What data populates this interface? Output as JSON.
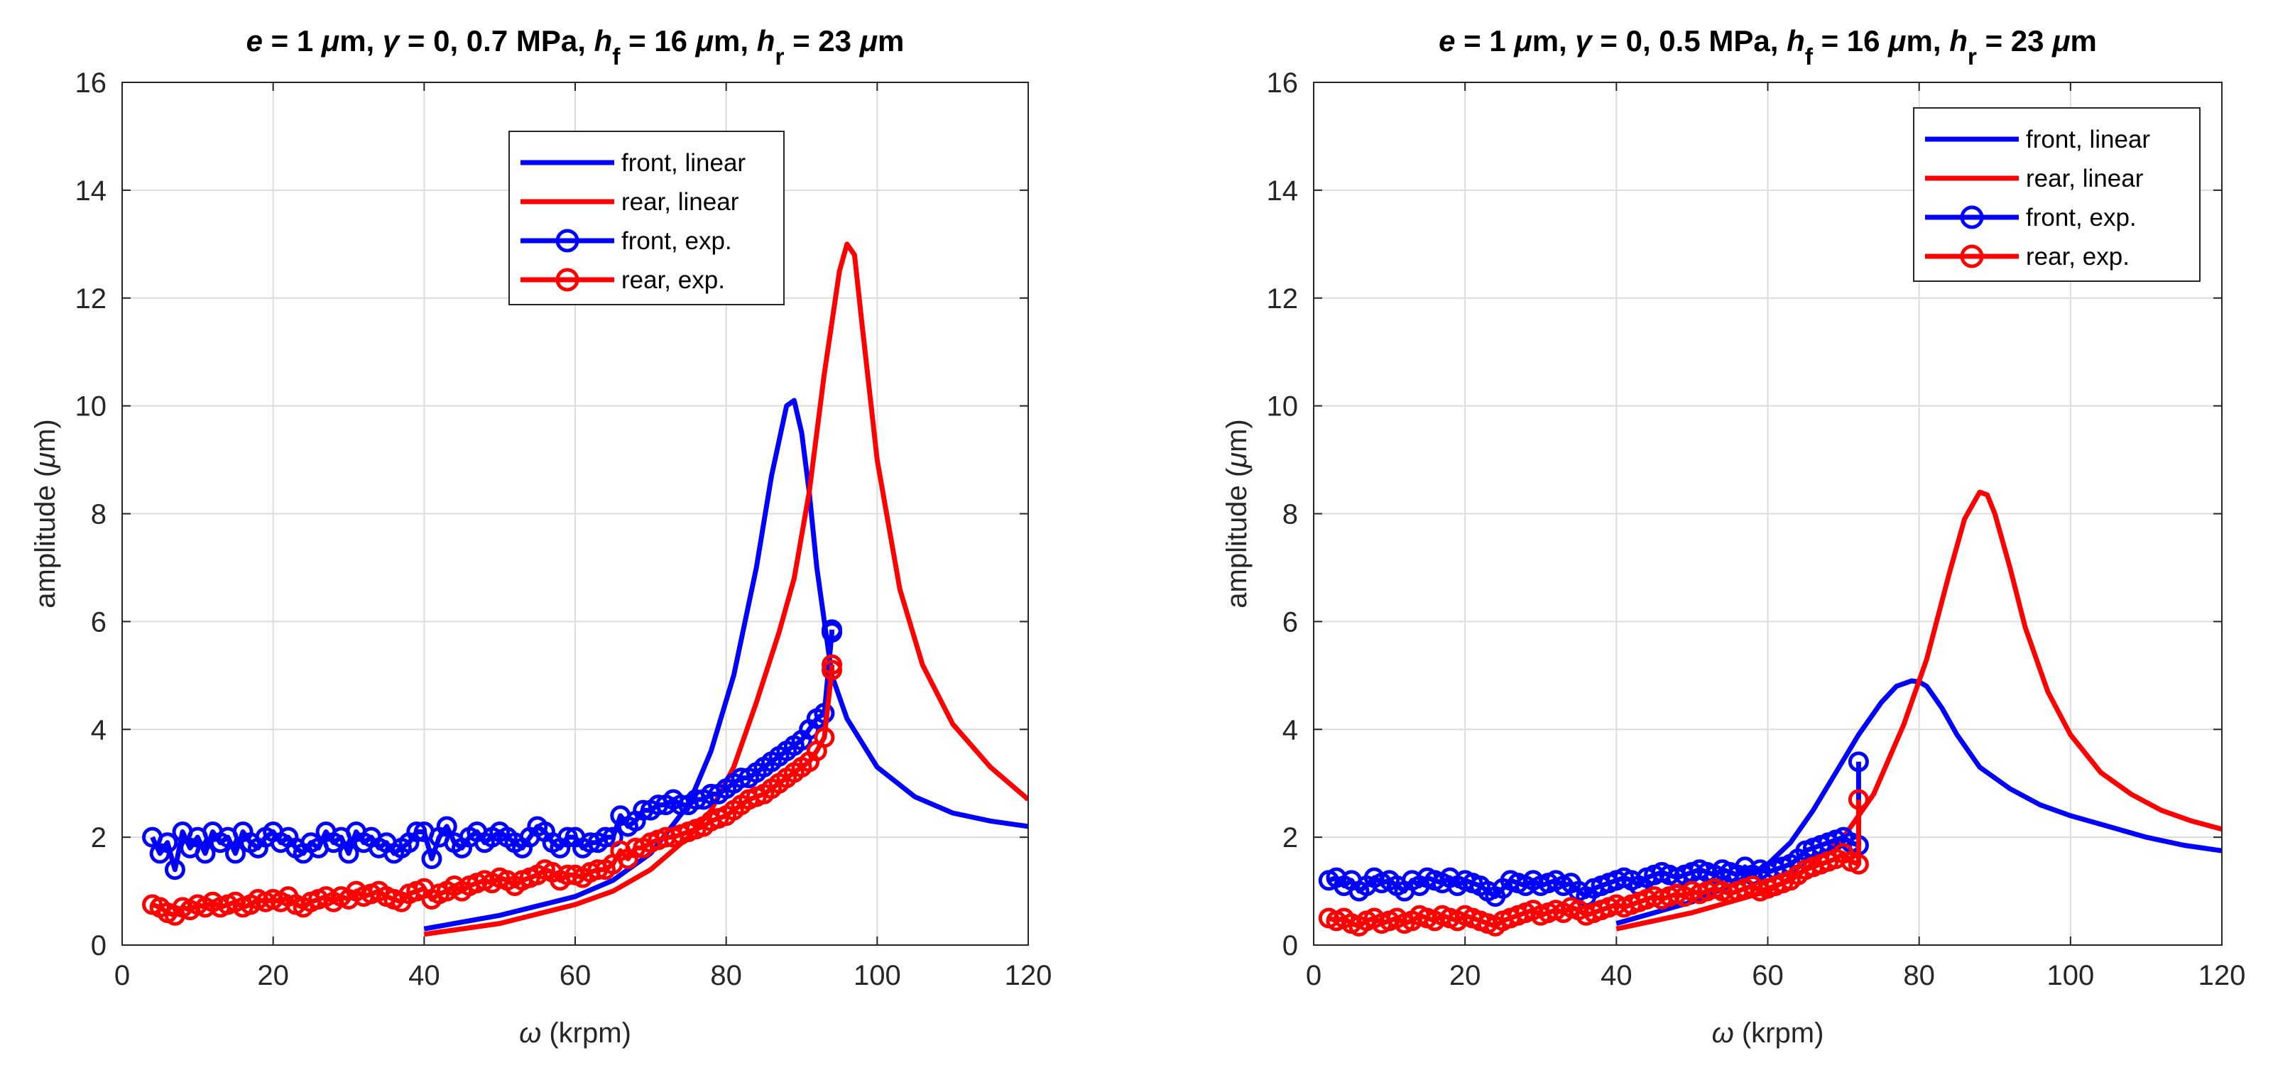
{
  "chart_data": [
    {
      "type": "line",
      "title_parts": [
        {
          "text": "e",
          "italic": true
        },
        {
          "text": " = 1 "
        },
        {
          "text": "μ",
          "italic": true
        },
        {
          "text": "m, "
        },
        {
          "text": "γ",
          "italic": true
        },
        {
          "text": " = 0, 0.7 MPa,  "
        },
        {
          "text": "h",
          "italic": true
        },
        {
          "text": "f",
          "sub": true
        },
        {
          "text": " = 16 "
        },
        {
          "text": "μ",
          "italic": true
        },
        {
          "text": "m,  "
        },
        {
          "text": "h",
          "italic": true
        },
        {
          "text": "r",
          "sub": true
        },
        {
          "text": " = 23 "
        },
        {
          "text": "μ",
          "italic": true
        },
        {
          "text": "m"
        }
      ],
      "xlabel_parts": [
        {
          "text": "ω",
          "italic": true
        },
        {
          "text": " (krpm)"
        }
      ],
      "ylabel_parts": [
        {
          "text": "amplitude ("
        },
        {
          "text": "μ",
          "italic": true
        },
        {
          "text": "m)"
        }
      ],
      "xlim": [
        0,
        120
      ],
      "ylim": [
        0,
        16
      ],
      "xticks": [
        0,
        20,
        40,
        60,
        80,
        100,
        120
      ],
      "yticks": [
        0,
        2,
        4,
        6,
        8,
        10,
        12,
        14,
        16
      ],
      "grid": true,
      "legend_position": "top-center",
      "legend": [
        "front, linear",
        "rear, linear",
        "front, exp.",
        "rear, exp."
      ],
      "series": [
        {
          "name": "front, linear",
          "color": "#0000ff",
          "marker": "none",
          "x": [
            40,
            50,
            60,
            65,
            70,
            75,
            78,
            81,
            84,
            86,
            88,
            89,
            90,
            91,
            92,
            94,
            96,
            100,
            105,
            110,
            115,
            120
          ],
          "y": [
            0.3,
            0.55,
            0.9,
            1.2,
            1.7,
            2.6,
            3.6,
            5.0,
            7.0,
            8.7,
            10.0,
            10.1,
            9.5,
            8.4,
            7.0,
            5.0,
            4.2,
            3.3,
            2.75,
            2.45,
            2.3,
            2.2
          ]
        },
        {
          "name": "rear, linear",
          "color": "#ff0000",
          "marker": "none",
          "x": [
            40,
            50,
            60,
            65,
            70,
            75,
            78,
            81,
            84,
            87,
            89,
            91,
            93,
            95,
            96,
            97,
            98,
            100,
            103,
            106,
            110,
            115,
            120
          ],
          "y": [
            0.2,
            0.4,
            0.75,
            1.0,
            1.4,
            2.0,
            2.5,
            3.3,
            4.5,
            5.8,
            6.8,
            8.4,
            10.6,
            12.5,
            13.0,
            12.8,
            11.5,
            9.0,
            6.6,
            5.2,
            4.1,
            3.3,
            2.7
          ]
        },
        {
          "name": "front, exp.",
          "color": "#0000ff",
          "marker": "circle",
          "x": [
            4,
            5,
            6,
            7,
            8,
            9,
            10,
            11,
            12,
            13,
            14,
            15,
            16,
            17,
            18,
            19,
            20,
            21,
            22,
            23,
            24,
            25,
            26,
            27,
            28,
            29,
            30,
            31,
            32,
            33,
            34,
            35,
            36,
            37,
            38,
            39,
            40,
            41,
            42,
            43,
            44,
            45,
            46,
            47,
            48,
            49,
            50,
            51,
            52,
            53,
            54,
            55,
            56,
            57,
            58,
            59,
            60,
            61,
            62,
            63,
            64,
            65,
            66,
            67,
            68,
            69,
            70,
            71,
            72,
            73,
            74,
            75,
            76,
            77,
            78,
            79,
            80,
            81,
            82,
            83,
            84,
            85,
            86,
            87,
            88,
            89,
            90,
            91,
            92,
            93,
            94,
            94
          ],
          "y": [
            2.0,
            1.7,
            1.9,
            1.4,
            2.1,
            1.8,
            2.0,
            1.7,
            2.1,
            1.9,
            2.0,
            1.7,
            2.1,
            1.9,
            1.8,
            2.0,
            2.1,
            1.9,
            2.0,
            1.8,
            1.7,
            1.9,
            1.8,
            2.1,
            1.9,
            2.0,
            1.7,
            2.1,
            1.9,
            2.0,
            1.8,
            1.9,
            1.7,
            1.8,
            1.9,
            2.1,
            2.1,
            1.6,
            2.0,
            2.2,
            1.9,
            1.8,
            2.0,
            2.1,
            1.9,
            2.0,
            2.1,
            2.0,
            1.9,
            1.8,
            2.0,
            2.2,
            2.1,
            1.9,
            1.8,
            2.0,
            2.0,
            1.8,
            1.9,
            1.9,
            2.0,
            2.0,
            2.4,
            2.2,
            2.3,
            2.5,
            2.5,
            2.6,
            2.6,
            2.7,
            2.6,
            2.6,
            2.7,
            2.7,
            2.8,
            2.8,
            2.9,
            3.0,
            3.1,
            3.1,
            3.2,
            3.3,
            3.4,
            3.5,
            3.6,
            3.7,
            3.8,
            4.0,
            4.2,
            4.3,
            5.8,
            5.85
          ]
        },
        {
          "name": "rear, exp.",
          "color": "#ff0000",
          "marker": "circle",
          "x": [
            4,
            5,
            6,
            7,
            8,
            9,
            10,
            11,
            12,
            13,
            14,
            15,
            16,
            17,
            18,
            19,
            20,
            21,
            22,
            23,
            24,
            25,
            26,
            27,
            28,
            29,
            30,
            31,
            32,
            33,
            34,
            35,
            36,
            37,
            38,
            39,
            40,
            41,
            42,
            43,
            44,
            45,
            46,
            47,
            48,
            49,
            50,
            51,
            52,
            53,
            54,
            55,
            56,
            57,
            58,
            59,
            60,
            61,
            62,
            63,
            64,
            65,
            66,
            67,
            68,
            69,
            70,
            71,
            72,
            73,
            74,
            75,
            76,
            77,
            78,
            79,
            80,
            81,
            82,
            83,
            84,
            85,
            86,
            87,
            88,
            89,
            90,
            91,
            92,
            93,
            94,
            94
          ],
          "y": [
            0.75,
            0.7,
            0.6,
            0.55,
            0.7,
            0.65,
            0.75,
            0.7,
            0.8,
            0.7,
            0.75,
            0.8,
            0.7,
            0.75,
            0.85,
            0.8,
            0.85,
            0.8,
            0.9,
            0.75,
            0.7,
            0.8,
            0.85,
            0.9,
            0.8,
            0.9,
            0.85,
            1.0,
            0.9,
            0.95,
            1.0,
            0.9,
            0.85,
            0.8,
            0.95,
            1.0,
            1.05,
            0.85,
            0.95,
            1.0,
            1.1,
            1.0,
            1.1,
            1.15,
            1.2,
            1.15,
            1.25,
            1.2,
            1.1,
            1.2,
            1.25,
            1.3,
            1.4,
            1.35,
            1.2,
            1.3,
            1.3,
            1.25,
            1.35,
            1.4,
            1.4,
            1.5,
            1.75,
            1.6,
            1.8,
            1.8,
            1.9,
            1.95,
            2.0,
            2.0,
            2.05,
            2.1,
            2.15,
            2.2,
            2.3,
            2.35,
            2.4,
            2.5,
            2.6,
            2.7,
            2.75,
            2.8,
            2.9,
            3.0,
            3.1,
            3.2,
            3.3,
            3.4,
            3.6,
            3.85,
            5.1,
            5.2
          ]
        }
      ]
    },
    {
      "type": "line",
      "title_parts": [
        {
          "text": "e",
          "italic": true
        },
        {
          "text": " = 1 "
        },
        {
          "text": "μ",
          "italic": true
        },
        {
          "text": "m, "
        },
        {
          "text": "γ",
          "italic": true
        },
        {
          "text": " = 0, 0.5 MPa,  "
        },
        {
          "text": "h",
          "italic": true
        },
        {
          "text": "f",
          "sub": true
        },
        {
          "text": " = 16 "
        },
        {
          "text": "μ",
          "italic": true
        },
        {
          "text": "m,  "
        },
        {
          "text": "h",
          "italic": true
        },
        {
          "text": "r",
          "sub": true
        },
        {
          "text": " = 23 "
        },
        {
          "text": "μ",
          "italic": true
        },
        {
          "text": "m"
        }
      ],
      "xlabel_parts": [
        {
          "text": "ω",
          "italic": true
        },
        {
          "text": " (krpm)"
        }
      ],
      "ylabel_parts": [
        {
          "text": "amplitude ("
        },
        {
          "text": "μ",
          "italic": true
        },
        {
          "text": "m)"
        }
      ],
      "xlim": [
        0,
        120
      ],
      "ylim": [
        0,
        16
      ],
      "xticks": [
        0,
        20,
        40,
        60,
        80,
        100,
        120
      ],
      "yticks": [
        0,
        2,
        4,
        6,
        8,
        10,
        12,
        14,
        16
      ],
      "grid": true,
      "legend_position": "top-right",
      "legend": [
        "front, linear",
        "rear, linear",
        "front, exp.",
        "rear, exp."
      ],
      "series": [
        {
          "name": "front, linear",
          "color": "#0000ff",
          "marker": "none",
          "x": [
            40,
            50,
            55,
            60,
            63,
            66,
            69,
            72,
            75,
            77,
            79,
            80,
            81,
            83,
            85,
            88,
            92,
            96,
            100,
            105,
            110,
            115,
            120
          ],
          "y": [
            0.4,
            0.8,
            1.1,
            1.5,
            1.9,
            2.5,
            3.2,
            3.9,
            4.5,
            4.8,
            4.9,
            4.88,
            4.8,
            4.4,
            3.9,
            3.3,
            2.9,
            2.6,
            2.4,
            2.2,
            2.0,
            1.85,
            1.75
          ]
        },
        {
          "name": "rear, linear",
          "color": "#ff0000",
          "marker": "none",
          "x": [
            40,
            50,
            60,
            65,
            70,
            74,
            78,
            81,
            84,
            86,
            88,
            89,
            90,
            92,
            94,
            97,
            100,
            104,
            108,
            112,
            116,
            120
          ],
          "y": [
            0.3,
            0.6,
            1.0,
            1.4,
            2.0,
            2.8,
            4.1,
            5.3,
            6.9,
            7.9,
            8.4,
            8.35,
            8.0,
            7.0,
            5.9,
            4.7,
            3.9,
            3.2,
            2.8,
            2.5,
            2.3,
            2.15
          ]
        },
        {
          "name": "front, exp.",
          "color": "#0000ff",
          "marker": "circle",
          "x": [
            2,
            3,
            4,
            5,
            6,
            7,
            8,
            9,
            10,
            11,
            12,
            13,
            14,
            15,
            16,
            17,
            18,
            19,
            20,
            21,
            22,
            23,
            24,
            25,
            26,
            27,
            28,
            29,
            30,
            31,
            32,
            33,
            34,
            35,
            36,
            37,
            38,
            39,
            40,
            41,
            42,
            43,
            44,
            45,
            46,
            47,
            48,
            49,
            50,
            51,
            52,
            53,
            54,
            55,
            56,
            57,
            58,
            59,
            60,
            61,
            62,
            63,
            64,
            65,
            66,
            67,
            68,
            69,
            70,
            71,
            72,
            72
          ],
          "y": [
            1.2,
            1.25,
            1.1,
            1.2,
            1.0,
            1.1,
            1.25,
            1.15,
            1.2,
            1.1,
            1.0,
            1.2,
            1.1,
            1.25,
            1.2,
            1.15,
            1.25,
            1.1,
            1.2,
            1.15,
            1.1,
            1.0,
            0.9,
            1.05,
            1.2,
            1.15,
            1.1,
            1.2,
            1.1,
            1.15,
            1.2,
            1.1,
            1.15,
            1.0,
            0.9,
            1.05,
            1.1,
            1.15,
            1.2,
            1.25,
            1.2,
            1.1,
            1.25,
            1.3,
            1.35,
            1.3,
            1.25,
            1.3,
            1.35,
            1.4,
            1.35,
            1.3,
            1.4,
            1.35,
            1.3,
            1.45,
            1.3,
            1.4,
            1.35,
            1.4,
            1.45,
            1.5,
            1.6,
            1.75,
            1.8,
            1.85,
            1.9,
            1.95,
            2.0,
            1.9,
            1.85,
            3.4
          ]
        },
        {
          "name": "rear, exp.",
          "color": "#ff0000",
          "marker": "circle",
          "x": [
            2,
            3,
            4,
            5,
            6,
            7,
            8,
            9,
            10,
            11,
            12,
            13,
            14,
            15,
            16,
            17,
            18,
            19,
            20,
            21,
            22,
            23,
            24,
            25,
            26,
            27,
            28,
            29,
            30,
            31,
            32,
            33,
            34,
            35,
            36,
            37,
            38,
            39,
            40,
            41,
            42,
            43,
            44,
            45,
            46,
            47,
            48,
            49,
            50,
            51,
            52,
            53,
            54,
            55,
            56,
            57,
            58,
            59,
            60,
            61,
            62,
            63,
            64,
            65,
            66,
            67,
            68,
            69,
            70,
            71,
            72,
            72
          ],
          "y": [
            0.5,
            0.45,
            0.5,
            0.4,
            0.35,
            0.45,
            0.5,
            0.4,
            0.45,
            0.5,
            0.4,
            0.45,
            0.55,
            0.5,
            0.45,
            0.55,
            0.5,
            0.45,
            0.55,
            0.5,
            0.45,
            0.4,
            0.35,
            0.45,
            0.5,
            0.55,
            0.6,
            0.65,
            0.55,
            0.6,
            0.65,
            0.6,
            0.7,
            0.65,
            0.55,
            0.6,
            0.65,
            0.7,
            0.75,
            0.7,
            0.75,
            0.8,
            0.85,
            0.9,
            0.85,
            0.9,
            0.95,
            0.9,
            1.0,
            0.95,
            1.0,
            1.05,
            1.0,
            0.95,
            1.0,
            1.05,
            1.1,
            1.0,
            1.05,
            1.1,
            1.15,
            1.2,
            1.3,
            1.4,
            1.45,
            1.5,
            1.55,
            1.6,
            1.7,
            1.55,
            1.5,
            2.7
          ]
        }
      ]
    }
  ]
}
